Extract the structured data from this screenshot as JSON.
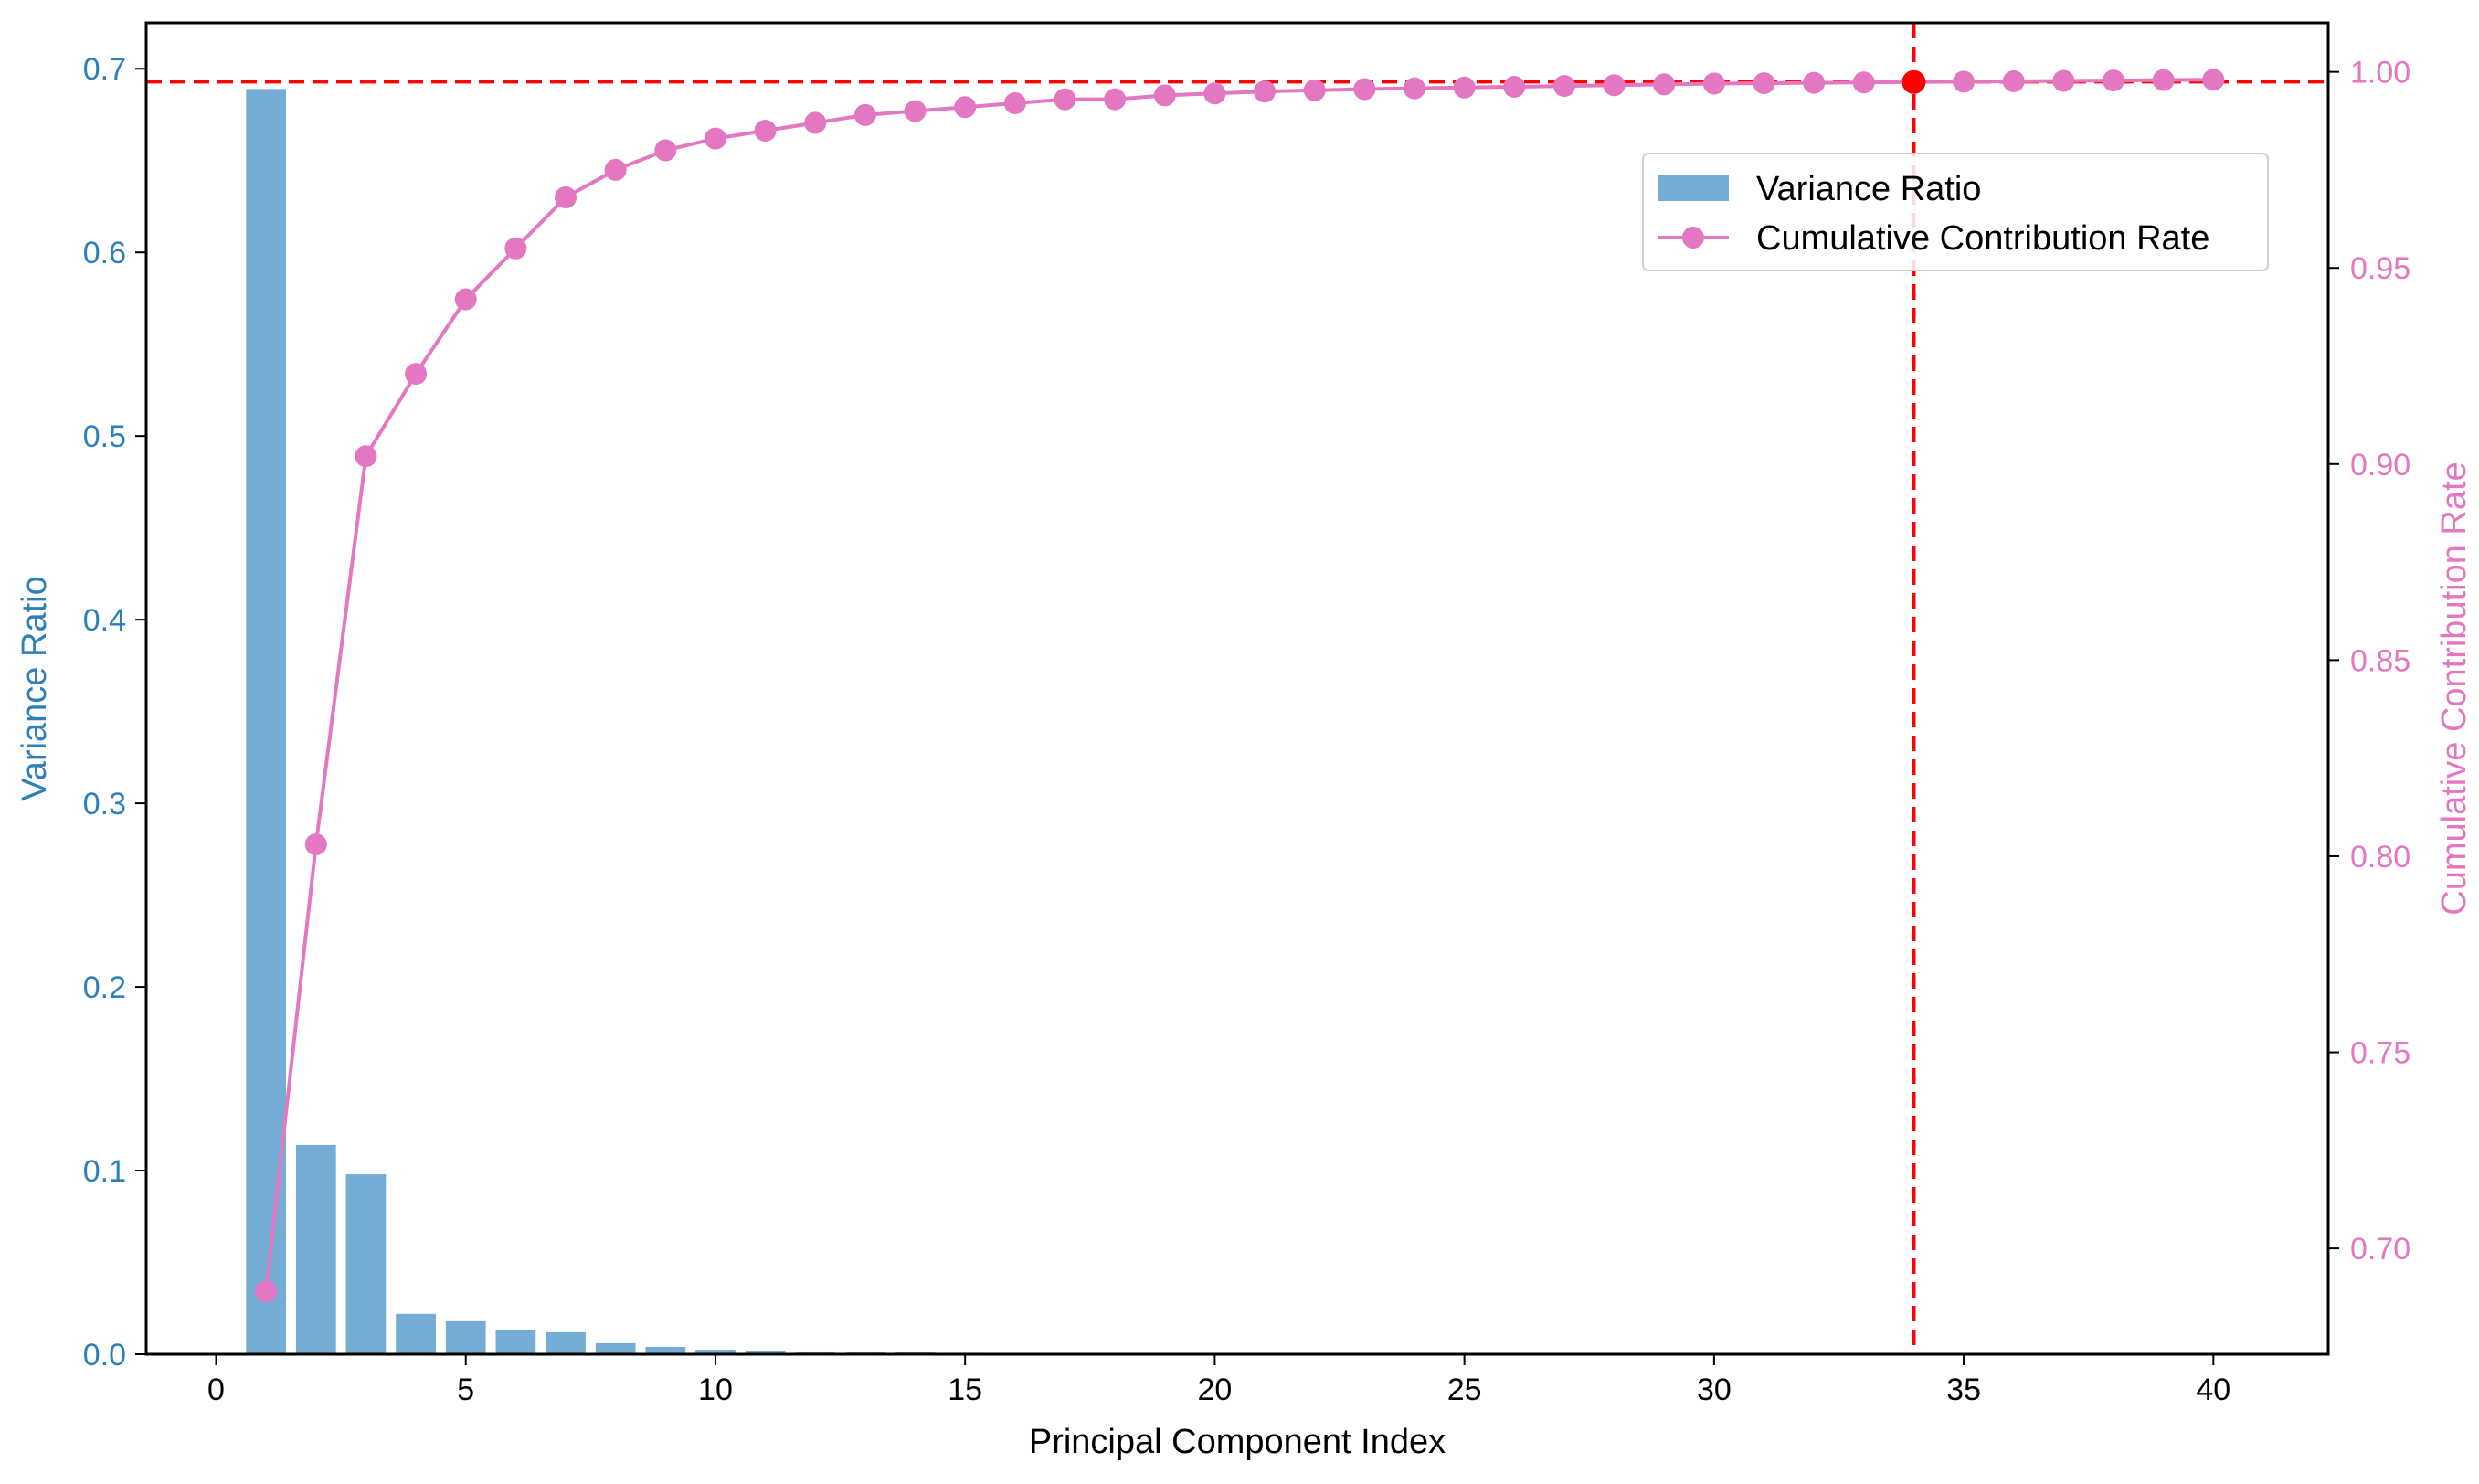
{
  "chart_data": {
    "type": "bar+line",
    "title": "",
    "xlabel": "Principal Component Index",
    "xlim": [
      -1.4,
      42.3
    ],
    "xticks": [
      "0",
      "5",
      "10",
      "15",
      "20",
      "25",
      "30",
      "35",
      "40"
    ],
    "x": [
      1,
      2,
      3,
      4,
      5,
      6,
      7,
      8,
      9,
      10,
      11,
      12,
      13,
      14,
      15,
      16,
      17,
      18,
      19,
      20,
      21,
      22,
      23,
      24,
      25,
      26,
      27,
      28,
      29,
      30,
      31,
      32,
      33,
      34,
      35,
      36,
      37,
      38,
      39,
      40
    ],
    "left_axis": {
      "label": "Variance Ratio",
      "ylim": [
        0,
        0.725
      ],
      "ticks": [
        "0.0",
        "0.1",
        "0.2",
        "0.3",
        "0.4",
        "0.5",
        "0.6",
        "0.7"
      ],
      "color": "#2f7fb8"
    },
    "right_axis": {
      "label": "Cumulative Contribution Rate",
      "ylim": [
        0.673,
        1.0125
      ],
      "ticks": [
        "0.70",
        "0.75",
        "0.80",
        "0.85",
        "0.90",
        "0.95",
        "1.00"
      ],
      "color": "#e377c2"
    },
    "series": [
      {
        "name": "Variance Ratio",
        "kind": "bar",
        "axis": "left",
        "color": "#74acd4",
        "values": [
          0.689,
          0.114,
          0.098,
          0.022,
          0.018,
          0.013,
          0.012,
          0.006,
          0.004,
          0.0025,
          0.002,
          0.0015,
          0.0012,
          0.001,
          0.0008,
          0.0006,
          0.0005,
          0.0004,
          0.0003,
          0.0003,
          0.0002,
          0.0002,
          0.0002,
          0.0001,
          0.0001,
          0.0001,
          0.0001,
          0.0001,
          0.0001,
          0.0001,
          0.0001,
          0.0001,
          0.0001,
          0.0001,
          0.0001,
          0.0001,
          0.0001,
          0.0001,
          0.0001,
          0.0001
        ]
      },
      {
        "name": "Cumulative Contribution Rate",
        "kind": "line",
        "axis": "right",
        "color": "#e377c2",
        "values": [
          0.689,
          0.803,
          0.902,
          0.923,
          0.942,
          0.955,
          0.968,
          0.975,
          0.98,
          0.983,
          0.985,
          0.987,
          0.989,
          0.99,
          0.991,
          0.992,
          0.993,
          0.993,
          0.994,
          0.9945,
          0.995,
          0.9953,
          0.9956,
          0.9958,
          0.996,
          0.9962,
          0.9964,
          0.9966,
          0.9968,
          0.997,
          0.9971,
          0.9972,
          0.9973,
          0.9974,
          0.9975,
          0.9976,
          0.9977,
          0.9978,
          0.9979,
          0.998
        ]
      }
    ],
    "reference_lines": {
      "color": "#ff0000",
      "vertical_x": 34,
      "horizontal_y_right": 0.9975,
      "marker": {
        "x": 34,
        "y_right": 0.9974
      }
    },
    "legend": {
      "position": "upper-right",
      "entries": [
        "Variance Ratio",
        "Cumulative Contribution Rate"
      ]
    },
    "grid": false
  }
}
